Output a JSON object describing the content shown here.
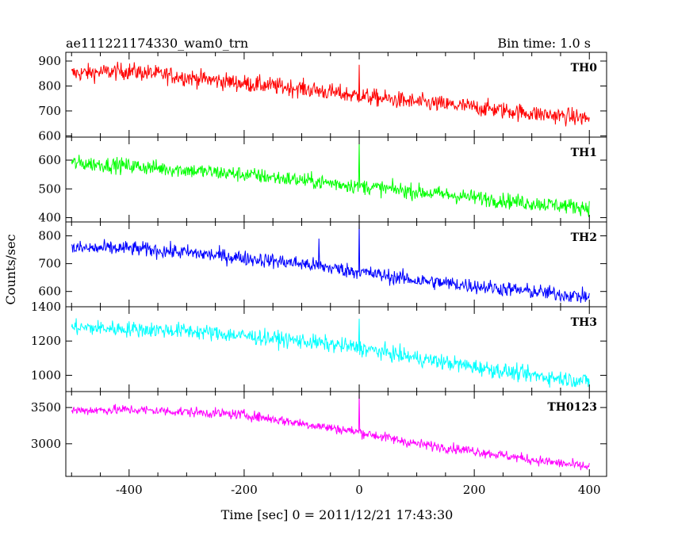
{
  "header": {
    "left_title": "ae111221174330_wam0_trn",
    "right_title": "Bin time: 1.0 s"
  },
  "chart_data": {
    "type": "line",
    "title": "ae111221174330_wam0_trn",
    "bin_time_label": "Bin time: 1.0 s",
    "xlabel": "Time [sec] 0 = 2011/12/21 17:43:30",
    "ylabel": "Counts/sec",
    "xlim": [
      -510,
      430
    ],
    "x_ticks": [
      -400,
      -200,
      0,
      200,
      400
    ],
    "grid": false,
    "legend": "series label at top-right inside each panel",
    "panels": [
      {
        "name": "TH0",
        "color": "#ff0000",
        "ylim": [
          595,
          935
        ],
        "y_ticks": [
          600,
          700,
          800,
          900
        ],
        "x": [
          -500,
          -400,
          -300,
          -200,
          -100,
          0,
          100,
          200,
          300,
          400
        ],
        "y": [
          850,
          860,
          835,
          810,
          790,
          760,
          735,
          715,
          690,
          670
        ],
        "noise": 45,
        "spikes": [
          {
            "x": 0,
            "y": 885
          }
        ]
      },
      {
        "name": "TH1",
        "color": "#00ff00",
        "ylim": [
          385,
          680
        ],
        "y_ticks": [
          400,
          500,
          600
        ],
        "x": [
          -500,
          -400,
          -300,
          -200,
          -100,
          0,
          100,
          200,
          300,
          400
        ],
        "y": [
          590,
          580,
          565,
          550,
          530,
          510,
          490,
          470,
          450,
          435
        ],
        "noise": 35,
        "spikes": [
          {
            "x": 0,
            "y": 660
          }
        ]
      },
      {
        "name": "TH2",
        "color": "#0000ff",
        "ylim": [
          545,
          850
        ],
        "y_ticks": [
          600,
          700,
          800
        ],
        "x": [
          -500,
          -400,
          -300,
          -200,
          -100,
          0,
          100,
          200,
          300,
          400
        ],
        "y": [
          755,
          755,
          740,
          720,
          700,
          670,
          640,
          620,
          600,
          580
        ],
        "noise": 35,
        "spikes": [
          {
            "x": 0,
            "y": 850
          },
          {
            "x": -70,
            "y": 790
          }
        ]
      },
      {
        "name": "TH3",
        "color": "#00ffff",
        "ylim": [
          905,
          1400
        ],
        "y_ticks": [
          1000,
          1200,
          1400
        ],
        "x": [
          -500,
          -400,
          -300,
          -200,
          -100,
          0,
          100,
          200,
          300,
          400
        ],
        "y": [
          1280,
          1270,
          1260,
          1230,
          1200,
          1160,
          1100,
          1050,
          1000,
          965
        ],
        "noise": 60,
        "spikes": [
          {
            "x": 0,
            "y": 1330
          }
        ]
      },
      {
        "name": "TH0123",
        "color": "#ff00ff",
        "ylim": [
          2550,
          3720
        ],
        "y_ticks": [
          3000,
          3500
        ],
        "x": [
          -500,
          -400,
          -300,
          -200,
          -100,
          0,
          100,
          200,
          300,
          400
        ],
        "y": [
          3460,
          3470,
          3440,
          3400,
          3280,
          3160,
          3000,
          2900,
          2780,
          2680
        ],
        "noise": 90,
        "spikes": [
          {
            "x": 0,
            "y": 3700
          }
        ]
      }
    ]
  }
}
